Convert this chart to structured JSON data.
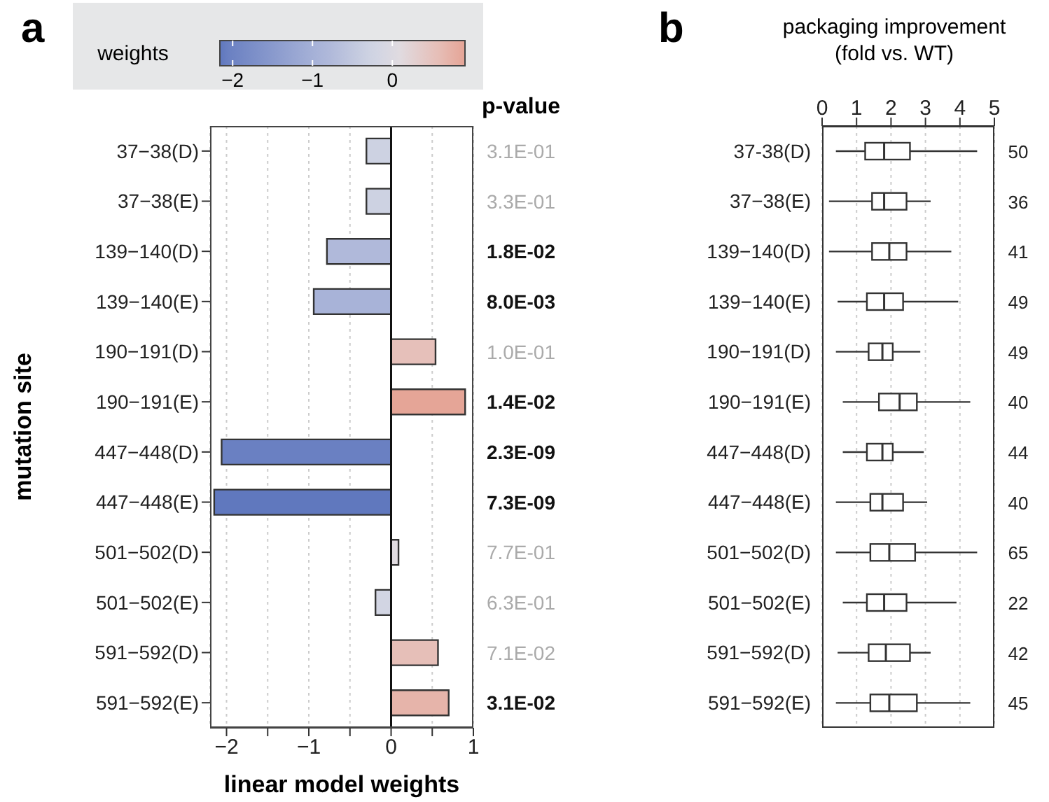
{
  "chart_data": [
    {
      "type": "bar",
      "orientation": "horizontal",
      "title": "a",
      "xlabel": "linear model weights",
      "ylabel": "mutation site",
      "clabel": "weights",
      "categories": [
        "37−38(D)",
        "37−38(E)",
        "139−140(D)",
        "139−140(E)",
        "190−191(D)",
        "190−191(E)",
        "447−448(D)",
        "447−448(E)",
        "501−502(D)",
        "501−502(E)",
        "591−592(D)",
        "591−592(E)"
      ],
      "values": [
        -0.3,
        -0.3,
        -0.78,
        -0.94,
        0.54,
        0.9,
        -2.06,
        -2.15,
        0.09,
        -0.19,
        0.57,
        0.7
      ],
      "colors": [
        "#cdd2e2",
        "#cdd2e2",
        "#b0b9da",
        "#a8b3d8",
        "#e6c0ba",
        "#e5a597",
        "#6a80c2",
        "#6078be",
        "#e0dbe0",
        "#d2d5e3",
        "#e6bfb8",
        "#e6b4aa"
      ],
      "annotations": [
        "p-value",
        "3.1E-01",
        "3.3E-01",
        "1.8E-02",
        "8.0E-03",
        "1.0E-01",
        "1.4E-02",
        "2.3E-09",
        "7.3E-09",
        "7.7E-01",
        "6.3E-01",
        "7.1E-02",
        "3.1E-02"
      ],
      "xlim": [
        -2.2,
        1
      ],
      "xticks": [
        {
          "value": -2,
          "label": "−2"
        },
        {
          "value": -1.5,
          "label": null
        },
        {
          "value": -1,
          "label": "−1"
        },
        {
          "value": -0.5,
          "label": null
        },
        0,
        {
          "value": 0.5,
          "label": null
        },
        1
      ],
      "clim": [
        -2.16,
        0.91
      ],
      "cticks": [
        {
          "value": -2,
          "label": "−2"
        },
        {
          "value": -1,
          "label": "−1"
        },
        0
      ],
      "ref_lines": [
        {
          "axis": "x",
          "value": 0
        }
      ],
      "grid": "x"
    },
    {
      "type": "box",
      "orientation": "horizontal",
      "title": "b",
      "xlabel": "packaging improvement\n(fold vs. WT)",
      "categories": [
        "37-38(D)",
        "37−38(E)",
        "139−140(D)",
        "139−140(E)",
        "190−191(D)",
        "190−191(E)",
        "447−448(D)",
        "447−448(E)",
        "501−502(D)",
        "501−502(E)",
        "591−592(D)",
        "591−592(E)"
      ],
      "boxes": [
        {
          "low": 0.4,
          "q1": 1.25,
          "median": 1.8,
          "q3": 2.55,
          "high": 4.5
        },
        {
          "low": 0.2,
          "q1": 1.45,
          "median": 1.8,
          "q3": 2.45,
          "high": 3.15
        },
        {
          "low": 0.2,
          "q1": 1.45,
          "median": 1.95,
          "q3": 2.45,
          "high": 3.75
        },
        {
          "low": 0.45,
          "q1": 1.3,
          "median": 1.8,
          "q3": 2.35,
          "high": 3.95
        },
        {
          "low": 0.4,
          "q1": 1.35,
          "median": 1.75,
          "q3": 2.05,
          "high": 2.85
        },
        {
          "low": 0.6,
          "q1": 1.65,
          "median": 2.25,
          "q3": 2.75,
          "high": 4.3
        },
        {
          "low": 0.6,
          "q1": 1.3,
          "median": 1.75,
          "q3": 2.05,
          "high": 2.95
        },
        {
          "low": 0.4,
          "q1": 1.4,
          "median": 1.75,
          "q3": 2.35,
          "high": 3.05
        },
        {
          "low": 0.4,
          "q1": 1.4,
          "median": 1.95,
          "q3": 2.7,
          "high": 4.5
        },
        {
          "low": 0.6,
          "q1": 1.3,
          "median": 1.8,
          "q3": 2.45,
          "high": 3.9
        },
        {
          "low": 0.45,
          "q1": 1.35,
          "median": 1.85,
          "q3": 2.55,
          "high": 3.15
        },
        {
          "low": 0.4,
          "q1": 1.4,
          "median": 1.95,
          "q3": 2.75,
          "high": 4.3
        }
      ],
      "value_labels": [
        "50",
        "36",
        "41",
        "49",
        "49",
        "40",
        "44",
        "40",
        "65",
        "22",
        "42",
        "45"
      ],
      "xlim": [
        0,
        5
      ],
      "xticks": [
        0,
        1,
        2,
        3,
        4,
        5
      ],
      "grid": "x"
    }
  ]
}
